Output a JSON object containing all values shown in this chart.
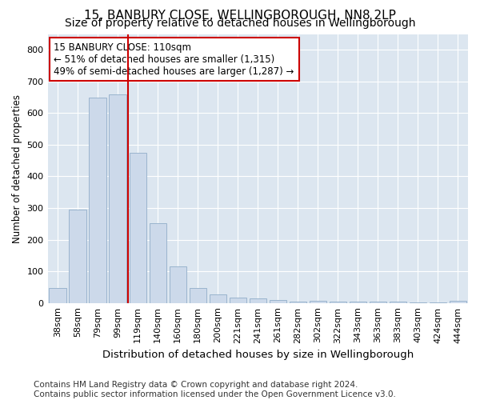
{
  "title": "15, BANBURY CLOSE, WELLINGBOROUGH, NN8 2LP",
  "subtitle": "Size of property relative to detached houses in Wellingborough",
  "xlabel": "Distribution of detached houses by size in Wellingborough",
  "ylabel": "Number of detached properties",
  "categories": [
    "38sqm",
    "58sqm",
    "79sqm",
    "99sqm",
    "119sqm",
    "140sqm",
    "160sqm",
    "180sqm",
    "200sqm",
    "221sqm",
    "241sqm",
    "261sqm",
    "282sqm",
    "302sqm",
    "322sqm",
    "343sqm",
    "363sqm",
    "383sqm",
    "403sqm",
    "424sqm",
    "444sqm"
  ],
  "values": [
    48,
    295,
    650,
    660,
    475,
    252,
    115,
    48,
    27,
    17,
    14,
    10,
    5,
    7,
    5,
    4,
    3,
    3,
    2,
    1,
    7
  ],
  "bar_color": "#ccd9ea",
  "bar_edge_color": "#9ab4ce",
  "vline_color": "#cc0000",
  "annotation_text": "15 BANBURY CLOSE: 110sqm\n← 51% of detached houses are smaller (1,315)\n49% of semi-detached houses are larger (1,287) →",
  "annotation_box_color": "#ffffff",
  "annotation_box_edge": "#cc0000",
  "ylim": [
    0,
    850
  ],
  "yticks": [
    0,
    100,
    200,
    300,
    400,
    500,
    600,
    700,
    800
  ],
  "fig_bg_color": "#ffffff",
  "plot_bg_color": "#dce6f0",
  "grid_color": "#ffffff",
  "footer": "Contains HM Land Registry data © Crown copyright and database right 2024.\nContains public sector information licensed under the Open Government Licence v3.0.",
  "title_fontsize": 11,
  "subtitle_fontsize": 10,
  "xlabel_fontsize": 9.5,
  "ylabel_fontsize": 8.5,
  "tick_fontsize": 8,
  "footer_fontsize": 7.5
}
